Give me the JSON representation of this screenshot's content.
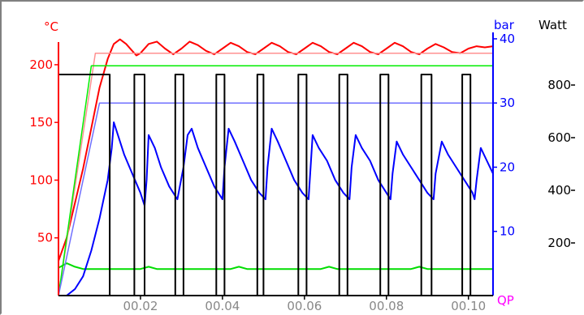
{
  "chart_data": {
    "type": "line",
    "x_range": [
      0,
      0.106
    ],
    "x_ticks": [
      {
        "value": 0.02,
        "label": "00.02"
      },
      {
        "value": 0.04,
        "label": "00.04"
      },
      {
        "value": 0.06,
        "label": "00.06"
      },
      {
        "value": 0.08,
        "label": "00.08"
      },
      {
        "value": 0.1,
        "label": "00.10"
      }
    ],
    "axes": {
      "temperature": {
        "label": "°C",
        "range": [
          0,
          228
        ],
        "ticks": [
          50,
          100,
          150,
          200
        ],
        "color": "#ff0000"
      },
      "pressure": {
        "label": "bar",
        "range": [
          0,
          41
        ],
        "ticks": [
          10,
          20,
          30,
          40
        ],
        "color": "#0000ff"
      },
      "power": {
        "label": "Watt",
        "range": [
          0,
          1000
        ],
        "ticks": [
          200,
          400,
          600,
          800
        ],
        "color": "#000000"
      },
      "qp": {
        "label": "QP",
        "color": "#ff00ff"
      }
    },
    "grid": false,
    "series": [
      {
        "color": "#ff0000",
        "axis": "temperature",
        "points": [
          [
            0,
            30
          ],
          [
            0.002,
            50
          ],
          [
            0.004,
            80
          ],
          [
            0.006,
            110
          ],
          [
            0.008,
            145
          ],
          [
            0.01,
            180
          ],
          [
            0.012,
            205
          ],
          [
            0.0135,
            218
          ],
          [
            0.015,
            222
          ],
          [
            0.0165,
            218
          ],
          [
            0.018,
            212
          ],
          [
            0.019,
            208
          ],
          [
            0.02,
            210
          ],
          [
            0.022,
            218
          ],
          [
            0.024,
            220
          ],
          [
            0.026,
            214
          ],
          [
            0.028,
            209
          ],
          [
            0.03,
            214
          ],
          [
            0.032,
            220
          ],
          [
            0.034,
            217
          ],
          [
            0.036,
            212
          ],
          [
            0.038,
            209
          ],
          [
            0.04,
            214
          ],
          [
            0.042,
            219
          ],
          [
            0.044,
            216
          ],
          [
            0.046,
            211
          ],
          [
            0.048,
            209
          ],
          [
            0.05,
            214
          ],
          [
            0.052,
            219
          ],
          [
            0.054,
            216
          ],
          [
            0.056,
            211
          ],
          [
            0.058,
            209
          ],
          [
            0.06,
            214
          ],
          [
            0.062,
            219
          ],
          [
            0.064,
            216
          ],
          [
            0.066,
            211
          ],
          [
            0.068,
            209
          ],
          [
            0.07,
            214
          ],
          [
            0.072,
            219
          ],
          [
            0.074,
            216
          ],
          [
            0.076,
            211
          ],
          [
            0.078,
            209
          ],
          [
            0.08,
            214
          ],
          [
            0.082,
            219
          ],
          [
            0.084,
            216
          ],
          [
            0.086,
            211
          ],
          [
            0.088,
            209
          ],
          [
            0.09,
            214
          ],
          [
            0.092,
            218
          ],
          [
            0.094,
            215
          ],
          [
            0.096,
            211
          ],
          [
            0.098,
            210
          ],
          [
            0.1,
            214
          ],
          [
            0.102,
            216
          ],
          [
            0.104,
            215
          ],
          [
            0.106,
            216
          ]
        ]
      },
      {
        "color": "#ff9090",
        "axis": "temperature",
        "points": [
          [
            0,
            0
          ],
          [
            0.009,
            210
          ],
          [
            0.106,
            210
          ]
        ]
      },
      {
        "color": "#00ee00",
        "axis": "temperature",
        "points": [
          [
            0,
            0
          ],
          [
            0.008,
            199
          ],
          [
            0.106,
            199
          ]
        ]
      },
      {
        "color": "#00dd00",
        "axis": "temperature",
        "points": [
          [
            0,
            24
          ],
          [
            0.002,
            28
          ],
          [
            0.004,
            25
          ],
          [
            0.006,
            23
          ],
          [
            0.02,
            23
          ],
          [
            0.022,
            25
          ],
          [
            0.024,
            23
          ],
          [
            0.042,
            23
          ],
          [
            0.044,
            25
          ],
          [
            0.046,
            23
          ],
          [
            0.064,
            23
          ],
          [
            0.066,
            25
          ],
          [
            0.068,
            23
          ],
          [
            0.086,
            23
          ],
          [
            0.088,
            25
          ],
          [
            0.09,
            23
          ],
          [
            0.106,
            23
          ]
        ]
      },
      {
        "color": "#0000ff",
        "axis": "pressure",
        "points": [
          [
            0,
            0
          ],
          [
            0.002,
            0
          ],
          [
            0.004,
            1
          ],
          [
            0.006,
            3
          ],
          [
            0.008,
            7
          ],
          [
            0.01,
            12
          ],
          [
            0.012,
            18
          ],
          [
            0.013,
            23
          ],
          [
            0.0135,
            27
          ],
          [
            0.0145,
            25
          ],
          [
            0.016,
            22
          ],
          [
            0.018,
            19
          ],
          [
            0.02,
            16
          ],
          [
            0.021,
            14
          ],
          [
            0.0215,
            18
          ],
          [
            0.022,
            25
          ],
          [
            0.0235,
            23
          ],
          [
            0.025,
            20
          ],
          [
            0.027,
            17
          ],
          [
            0.029,
            15
          ],
          [
            0.0305,
            20
          ],
          [
            0.0315,
            25
          ],
          [
            0.0325,
            26
          ],
          [
            0.034,
            23
          ],
          [
            0.036,
            20
          ],
          [
            0.038,
            17
          ],
          [
            0.04,
            15
          ],
          [
            0.0405,
            20
          ],
          [
            0.0415,
            26
          ],
          [
            0.043,
            24
          ],
          [
            0.045,
            21
          ],
          [
            0.047,
            18
          ],
          [
            0.049,
            16
          ],
          [
            0.0505,
            15
          ],
          [
            0.051,
            20
          ],
          [
            0.052,
            26
          ],
          [
            0.0535,
            24
          ],
          [
            0.0555,
            21
          ],
          [
            0.0575,
            18
          ],
          [
            0.0595,
            16
          ],
          [
            0.061,
            15
          ],
          [
            0.0615,
            20
          ],
          [
            0.062,
            25
          ],
          [
            0.0635,
            23
          ],
          [
            0.0655,
            21
          ],
          [
            0.0675,
            18
          ],
          [
            0.0695,
            16
          ],
          [
            0.071,
            15
          ],
          [
            0.0715,
            20
          ],
          [
            0.0725,
            25
          ],
          [
            0.074,
            23
          ],
          [
            0.076,
            21
          ],
          [
            0.078,
            18
          ],
          [
            0.08,
            16
          ],
          [
            0.081,
            15
          ],
          [
            0.0815,
            19
          ],
          [
            0.0825,
            24
          ],
          [
            0.084,
            22
          ],
          [
            0.086,
            20
          ],
          [
            0.088,
            18
          ],
          [
            0.09,
            16
          ],
          [
            0.0915,
            15
          ],
          [
            0.092,
            19
          ],
          [
            0.0935,
            24
          ],
          [
            0.095,
            22
          ],
          [
            0.097,
            20
          ],
          [
            0.099,
            18
          ],
          [
            0.101,
            16
          ],
          [
            0.1015,
            15
          ],
          [
            0.102,
            18
          ],
          [
            0.103,
            23
          ],
          [
            0.1045,
            21
          ],
          [
            0.106,
            19
          ]
        ]
      },
      {
        "color": "#7070ff",
        "axis": "pressure",
        "points": [
          [
            0,
            0
          ],
          [
            0.01,
            30
          ],
          [
            0.106,
            30
          ]
        ]
      },
      {
        "color": "#000000",
        "axis": "power",
        "step": true,
        "points": [
          [
            0,
            840
          ],
          [
            0.011,
            840
          ],
          [
            0.011,
            840
          ],
          [
            0.0125,
            840
          ],
          [
            0.0125,
            0
          ],
          [
            0.0185,
            0
          ],
          [
            0.0185,
            840
          ],
          [
            0.021,
            840
          ],
          [
            0.021,
            0
          ],
          [
            0.0285,
            0
          ],
          [
            0.0285,
            840
          ],
          [
            0.0305,
            840
          ],
          [
            0.0305,
            0
          ],
          [
            0.0385,
            0
          ],
          [
            0.0385,
            840
          ],
          [
            0.0405,
            840
          ],
          [
            0.0405,
            0
          ],
          [
            0.0485,
            0
          ],
          [
            0.0485,
            840
          ],
          [
            0.05,
            840
          ],
          [
            0.05,
            0
          ],
          [
            0.0585,
            0
          ],
          [
            0.0585,
            840
          ],
          [
            0.0605,
            840
          ],
          [
            0.0605,
            0
          ],
          [
            0.0685,
            0
          ],
          [
            0.0685,
            840
          ],
          [
            0.0705,
            840
          ],
          [
            0.0705,
            0
          ],
          [
            0.0785,
            0
          ],
          [
            0.0785,
            840
          ],
          [
            0.0805,
            840
          ],
          [
            0.0805,
            0
          ],
          [
            0.0885,
            0
          ],
          [
            0.0885,
            840
          ],
          [
            0.091,
            840
          ],
          [
            0.091,
            0
          ],
          [
            0.0985,
            0
          ],
          [
            0.0985,
            840
          ],
          [
            0.1005,
            840
          ],
          [
            0.1005,
            0
          ],
          [
            0.106,
            0
          ]
        ]
      }
    ]
  }
}
